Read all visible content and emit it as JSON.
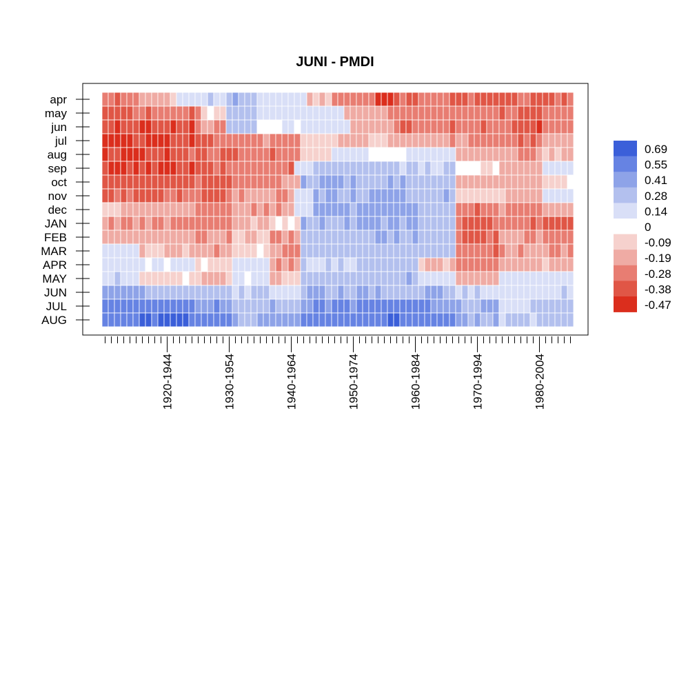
{
  "chart_data": {
    "type": "heatmap",
    "title": "JUNI - PMDI",
    "xlabel": "",
    "ylabel": "",
    "rows": [
      "apr",
      "may",
      "jun",
      "jul",
      "aug",
      "sep",
      "oct",
      "nov",
      "dec",
      "JAN",
      "FEB",
      "MAR",
      "APR",
      "MAY",
      "JUN",
      "JUL",
      "AUG"
    ],
    "x_count": 76,
    "x_tick_labels": [
      "1920-1944",
      "1930-1954",
      "1940-1964",
      "1950-1974",
      "1960-1984",
      "1970-1994",
      "1980-2004"
    ],
    "x_tick_label_index": [
      10,
      20,
      30,
      40,
      50,
      60,
      70
    ],
    "legend": {
      "placement": "right",
      "labels": [
        "0.69",
        "0.55",
        "0.41",
        "0.28",
        "0.14",
        "0",
        "-0.09",
        "-0.19",
        "-0.28",
        "-0.38",
        "-0.47"
      ],
      "colors": [
        "#3b5fd9",
        "#6683e3",
        "#8ea3e8",
        "#b3c0ee",
        "#d9dff7",
        "#ffffff",
        "#f6d1cd",
        "#efaba4",
        "#e87d72",
        "#e05646",
        "#db2e1d"
      ]
    },
    "value_grid": {
      "description_of_encoding": "rows listed top to bottom; each row holds [from_index, to_index, value] runs across 76 moving windows",
      "apr": [
        [
          0,
          5,
          -0.25
        ],
        [
          6,
          11,
          -0.1
        ],
        [
          12,
          15,
          0.05
        ],
        [
          16,
          19,
          0.14
        ],
        [
          20,
          24,
          0.25
        ],
        [
          25,
          32,
          0.12
        ],
        [
          33,
          36,
          -0.1
        ],
        [
          37,
          43,
          -0.25
        ],
        [
          44,
          46,
          -0.38
        ],
        [
          47,
          55,
          -0.28
        ],
        [
          56,
          75,
          -0.3
        ]
      ],
      "may": [
        [
          0,
          4,
          -0.33
        ],
        [
          5,
          15,
          -0.25
        ],
        [
          16,
          19,
          -0.05
        ],
        [
          20,
          24,
          0.2
        ],
        [
          25,
          32,
          0.12
        ],
        [
          33,
          38,
          0.1
        ],
        [
          39,
          44,
          -0.15
        ],
        [
          45,
          55,
          -0.22
        ],
        [
          56,
          66,
          -0.25
        ],
        [
          67,
          70,
          -0.33
        ],
        [
          71,
          75,
          -0.25
        ]
      ],
      "jun": [
        [
          0,
          4,
          -0.38
        ],
        [
          5,
          14,
          -0.38
        ],
        [
          15,
          19,
          -0.2
        ],
        [
          20,
          24,
          0.18
        ],
        [
          25,
          32,
          0.02
        ],
        [
          33,
          39,
          0.08
        ],
        [
          40,
          46,
          -0.12
        ],
        [
          47,
          55,
          -0.25
        ],
        [
          56,
          66,
          -0.25
        ],
        [
          67,
          70,
          -0.38
        ],
        [
          71,
          75,
          -0.25
        ]
      ],
      "jul": [
        [
          0,
          4,
          -0.42
        ],
        [
          5,
          14,
          -0.38
        ],
        [
          15,
          20,
          -0.28
        ],
        [
          21,
          31,
          -0.22
        ],
        [
          32,
          37,
          -0.05
        ],
        [
          38,
          46,
          -0.1
        ],
        [
          47,
          55,
          -0.12
        ],
        [
          56,
          66,
          -0.2
        ],
        [
          67,
          70,
          -0.28
        ],
        [
          71,
          75,
          -0.15
        ]
      ],
      "aug": [
        [
          0,
          13,
          -0.38
        ],
        [
          14,
          20,
          -0.3
        ],
        [
          21,
          31,
          -0.25
        ],
        [
          32,
          36,
          -0.02
        ],
        [
          37,
          42,
          0.1
        ],
        [
          43,
          48,
          0.02
        ],
        [
          49,
          56,
          0.08
        ],
        [
          57,
          66,
          -0.15
        ],
        [
          67,
          70,
          -0.2
        ],
        [
          71,
          75,
          -0.1
        ]
      ],
      "sep": [
        [
          0,
          14,
          -0.38
        ],
        [
          15,
          20,
          -0.3
        ],
        [
          21,
          30,
          -0.25
        ],
        [
          31,
          33,
          0.05
        ],
        [
          34,
          40,
          0.25
        ],
        [
          41,
          47,
          0.2
        ],
        [
          48,
          56,
          0.15
        ],
        [
          57,
          63,
          -0.02
        ],
        [
          64,
          70,
          -0.15
        ],
        [
          71,
          75,
          0.08
        ]
      ],
      "oct": [
        [
          0,
          14,
          -0.33
        ],
        [
          15,
          20,
          -0.3
        ],
        [
          21,
          28,
          -0.25
        ],
        [
          29,
          31,
          -0.15
        ],
        [
          32,
          40,
          0.28
        ],
        [
          41,
          49,
          0.25
        ],
        [
          50,
          56,
          0.22
        ],
        [
          57,
          63,
          -0.1
        ],
        [
          64,
          70,
          -0.12
        ],
        [
          71,
          75,
          -0.05
        ]
      ],
      "nov": [
        [
          0,
          14,
          -0.28
        ],
        [
          15,
          20,
          -0.3
        ],
        [
          21,
          30,
          -0.2
        ],
        [
          31,
          33,
          0.08
        ],
        [
          34,
          40,
          0.3
        ],
        [
          41,
          49,
          0.3
        ],
        [
          50,
          56,
          0.25
        ],
        [
          57,
          63,
          -0.05
        ],
        [
          64,
          70,
          -0.1
        ],
        [
          71,
          75,
          0.05
        ]
      ],
      "dec": [
        [
          0,
          2,
          -0.05
        ],
        [
          3,
          14,
          -0.15
        ],
        [
          15,
          20,
          -0.22
        ],
        [
          21,
          30,
          -0.2
        ],
        [
          31,
          33,
          0.05
        ],
        [
          34,
          40,
          0.3
        ],
        [
          41,
          50,
          0.33
        ],
        [
          51,
          56,
          0.25
        ],
        [
          57,
          63,
          -0.25
        ],
        [
          64,
          70,
          -0.2
        ],
        [
          71,
          75,
          -0.15
        ]
      ],
      "JAN": [
        [
          0,
          14,
          -0.22
        ],
        [
          15,
          20,
          -0.25
        ],
        [
          21,
          26,
          -0.1
        ],
        [
          27,
          31,
          0.0
        ],
        [
          32,
          40,
          0.28
        ],
        [
          41,
          50,
          0.3
        ],
        [
          51,
          56,
          0.22
        ],
        [
          57,
          63,
          -0.28
        ],
        [
          64,
          70,
          -0.25
        ],
        [
          71,
          75,
          -0.33
        ]
      ],
      "FEB": [
        [
          0,
          14,
          -0.15
        ],
        [
          15,
          20,
          -0.2
        ],
        [
          21,
          26,
          -0.08
        ],
        [
          27,
          31,
          -0.2
        ],
        [
          32,
          40,
          0.22
        ],
        [
          41,
          50,
          0.25
        ],
        [
          51,
          56,
          0.2
        ],
        [
          57,
          63,
          -0.28
        ],
        [
          64,
          70,
          -0.2
        ],
        [
          71,
          75,
          -0.22
        ]
      ],
      "MAR": [
        [
          0,
          5,
          0.05
        ],
        [
          6,
          14,
          -0.12
        ],
        [
          15,
          20,
          -0.18
        ],
        [
          21,
          26,
          -0.05
        ],
        [
          27,
          31,
          -0.2
        ],
        [
          32,
          40,
          0.2
        ],
        [
          41,
          50,
          0.22
        ],
        [
          51,
          56,
          0.18
        ],
        [
          57,
          63,
          -0.25
        ],
        [
          64,
          70,
          -0.2
        ],
        [
          71,
          75,
          -0.18
        ]
      ],
      "APR": [
        [
          0,
          5,
          0.08
        ],
        [
          6,
          14,
          0.05
        ],
        [
          15,
          20,
          -0.05
        ],
        [
          21,
          26,
          0.08
        ],
        [
          27,
          31,
          -0.2
        ],
        [
          32,
          40,
          0.15
        ],
        [
          41,
          50,
          0.18
        ],
        [
          51,
          56,
          -0.1
        ],
        [
          57,
          63,
          -0.25
        ],
        [
          64,
          70,
          -0.15
        ],
        [
          71,
          75,
          -0.1
        ]
      ],
      "MAY": [
        [
          0,
          5,
          0.15
        ],
        [
          6,
          14,
          -0.05
        ],
        [
          15,
          20,
          -0.1
        ],
        [
          21,
          26,
          0.05
        ],
        [
          27,
          31,
          -0.1
        ],
        [
          32,
          40,
          0.2
        ],
        [
          41,
          50,
          0.25
        ],
        [
          51,
          56,
          0.1
        ],
        [
          57,
          63,
          -0.15
        ],
        [
          64,
          70,
          0.05
        ],
        [
          71,
          75,
          0.08
        ]
      ],
      "JUN": [
        [
          0,
          5,
          0.35
        ],
        [
          6,
          14,
          0.25
        ],
        [
          15,
          20,
          0.18
        ],
        [
          21,
          26,
          0.12
        ],
        [
          27,
          31,
          0.1
        ],
        [
          32,
          40,
          0.28
        ],
        [
          41,
          50,
          0.3
        ],
        [
          51,
          56,
          0.25
        ],
        [
          57,
          63,
          0.12
        ],
        [
          64,
          70,
          0.08
        ],
        [
          71,
          75,
          0.12
        ]
      ],
      "JUL": [
        [
          0,
          5,
          0.5
        ],
        [
          6,
          14,
          0.45
        ],
        [
          15,
          20,
          0.4
        ],
        [
          21,
          26,
          0.22
        ],
        [
          27,
          31,
          0.25
        ],
        [
          32,
          40,
          0.4
        ],
        [
          41,
          50,
          0.48
        ],
        [
          51,
          56,
          0.42
        ],
        [
          57,
          63,
          0.3
        ],
        [
          64,
          70,
          0.15
        ],
        [
          71,
          75,
          0.18
        ]
      ],
      "AUG": [
        [
          0,
          5,
          0.5
        ],
        [
          6,
          14,
          0.58
        ],
        [
          15,
          20,
          0.45
        ],
        [
          21,
          26,
          0.3
        ],
        [
          27,
          31,
          0.35
        ],
        [
          32,
          40,
          0.45
        ],
        [
          41,
          50,
          0.52
        ],
        [
          51,
          56,
          0.45
        ],
        [
          57,
          63,
          0.3
        ],
        [
          64,
          70,
          0.15
        ],
        [
          71,
          75,
          0.2
        ]
      ]
    }
  }
}
